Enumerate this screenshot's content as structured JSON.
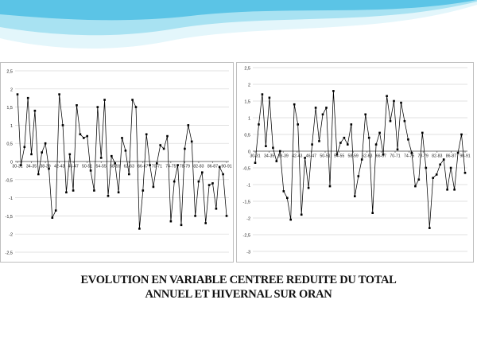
{
  "slide": {
    "caption_line1": "EVOLUTION EN VARIABLE CENTREE REDUITE DU TOTAL",
    "caption_line2": "ANNUEL ET HIVERNAL SUR ORAN",
    "banner_colors": [
      "#5bc4e6",
      "#a8e2f2",
      "#e3f6fb"
    ]
  },
  "chart_data": [
    {
      "type": "line",
      "title": "",
      "xlabel": "",
      "ylabel": "",
      "ylim": [
        -2.5,
        2.5
      ],
      "ytick_labels": [
        "2,5",
        "2",
        "1,5",
        "1",
        "0,5",
        "0",
        "-0,5",
        "-1",
        "-1,5",
        "-2",
        "-2,5"
      ],
      "ytick_values": [
        2.5,
        2,
        1.5,
        1,
        0.5,
        0,
        -0.5,
        -1,
        -1.5,
        -2,
        -2.5
      ],
      "xtick_labels": [
        "30-31",
        "34-35",
        "38-39",
        "42-43",
        "46-47",
        "50-51",
        "54-55",
        "58-59",
        "62-63",
        "66-67",
        "70-71",
        "74-75",
        "78-79",
        "82-83",
        "86-87",
        "90-91"
      ],
      "grid": "horizontal",
      "legend": "none",
      "line_color": "#000000",
      "series": [
        {
          "values": [
            1.85,
            -0.1,
            0.4,
            1.75,
            0.2,
            1.4,
            -0.35,
            0.25,
            0.5,
            -0.2,
            -1.55,
            -1.35,
            1.85,
            1.0,
            -0.85,
            0.2,
            -0.8,
            1.55,
            0.75,
            0.65,
            0.7,
            -0.25,
            -0.8,
            1.5,
            0.1,
            1.7,
            -0.95,
            0.15,
            -0.05,
            -0.85,
            0.65,
            0.3,
            -0.35,
            1.7,
            1.5,
            -1.85,
            -0.8,
            0.75,
            -0.1,
            -0.7,
            -0.05,
            0.45,
            0.35,
            0.7,
            -1.65,
            -0.55,
            -0.1,
            -1.75,
            0.35,
            1.0,
            0.55,
            -1.5,
            -0.55,
            -0.3,
            -1.7,
            -0.65,
            -0.6,
            -1.3,
            -0.15,
            -0.35,
            -1.5
          ]
        }
      ]
    },
    {
      "type": "line",
      "title": "",
      "xlabel": "",
      "ylabel": "",
      "ylim": [
        -3,
        2.5
      ],
      "ytick_labels": [
        "2,5",
        "2",
        "1,5",
        "1",
        "0,5",
        "0",
        "-0,5",
        "-1",
        "-1,5",
        "-2",
        "-2,5",
        "-3"
      ],
      "ytick_values": [
        2.5,
        2,
        1.5,
        1,
        0.5,
        0,
        -0.5,
        -1,
        -1.5,
        -2,
        -2.5,
        -3
      ],
      "xtick_labels": [
        "30-31",
        "34-35",
        "38-39",
        "42-43",
        "46-47",
        "50-51",
        "54-55",
        "58-59",
        "62-63",
        "66-67",
        "70-71",
        "74-75",
        "78-79",
        "82-83",
        "86-87",
        "90-91"
      ],
      "grid": "horizontal",
      "legend": "none",
      "line_color": "#000000",
      "series": [
        {
          "values": [
            -0.35,
            0.8,
            1.7,
            0.15,
            1.6,
            0.1,
            -0.3,
            0.0,
            -1.2,
            -1.4,
            -2.05,
            1.4,
            0.8,
            -1.9,
            -0.2,
            -1.1,
            0.2,
            1.3,
            0.3,
            1.1,
            1.3,
            -1.05,
            1.8,
            -0.1,
            0.25,
            0.4,
            0.2,
            0.8,
            -1.35,
            -0.75,
            -0.25,
            1.1,
            0.4,
            -1.85,
            0.2,
            0.55,
            -0.1,
            1.65,
            0.9,
            1.5,
            0.05,
            1.45,
            0.9,
            0.35,
            -0.05,
            -1.05,
            -0.85,
            0.55,
            -0.5,
            -2.3,
            -0.8,
            -0.7,
            -0.4,
            -0.25,
            -1.15,
            -0.5,
            -1.15,
            -0.05,
            0.5,
            -0.65
          ]
        }
      ]
    }
  ]
}
